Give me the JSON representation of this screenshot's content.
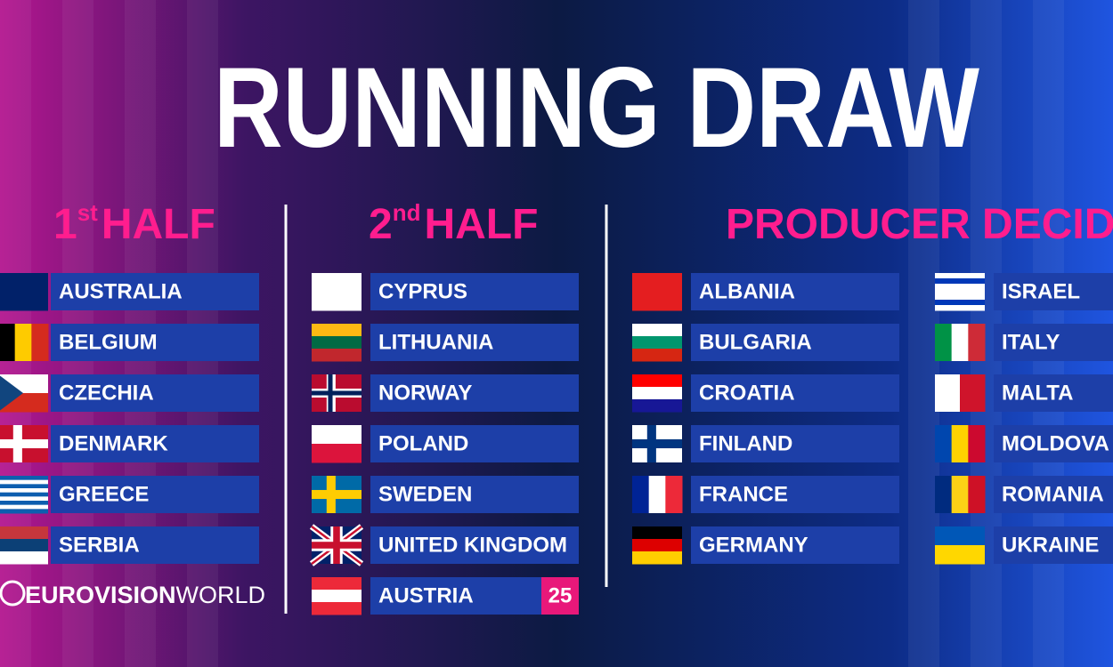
{
  "title": "RUNNING DRAW",
  "logo": {
    "bold": "EUROVISION",
    "light": "WORLD"
  },
  "first_half": {
    "number": "1",
    "suffix": "st",
    "label": "HALF",
    "countries": [
      "AUSTRALIA",
      "BELGIUM",
      "CZECHIA",
      "DENMARK",
      "GREECE",
      "SERBIA"
    ]
  },
  "second_half": {
    "number": "2",
    "suffix": "nd",
    "label": "HALF",
    "countries": [
      "CYPRUS",
      "LITHUANIA",
      "NORWAY",
      "POLAND",
      "SWEDEN",
      "UNITED KINGDOM"
    ],
    "host": {
      "name": "AUSTRIA",
      "number": "25"
    }
  },
  "producer_decides": {
    "heading": "PRODUCER DECIDES",
    "columns": [
      [
        "ALBANIA",
        "BULGARIA",
        "CROATIA",
        "FINLAND",
        "FRANCE",
        "GERMANY"
      ],
      [
        "ISRAEL",
        "ITALY",
        "MALTA",
        "MOLDOVA",
        "ROMANIA",
        "UKRAINE"
      ]
    ]
  }
}
